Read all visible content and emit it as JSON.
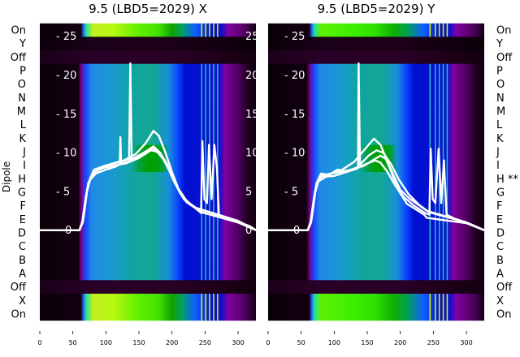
{
  "chart_data": [
    {
      "type": "heatmap",
      "title": "9.5 (LBD5=2029) X",
      "ylabel": "Dipole",
      "row_labels": [
        "On",
        "Y",
        "Off",
        "P",
        "O",
        "N",
        "M",
        "L",
        "K",
        "J",
        "I",
        "H",
        "G",
        "F",
        "E",
        "D",
        "C",
        "B",
        "A",
        "Off",
        "X",
        "On"
      ],
      "row_profiles": [
        "bright",
        "dark",
        "off",
        "mid",
        "mid",
        "mid",
        "mid",
        "mid",
        "mid",
        "midgreen",
        "midgreen",
        "mid",
        "mid",
        "mid",
        "mid",
        "mid",
        "mid",
        "mid",
        "mid",
        "off",
        "bright",
        "bright"
      ],
      "xticks": [
        0,
        50,
        100,
        150,
        200,
        250,
        300
      ],
      "xlim": [
        0,
        327
      ],
      "overlay_yticks": [
        0,
        5,
        10,
        15,
        20,
        25
      ],
      "overlay_ylim": [
        -11.67,
        26.67
      ],
      "stripes_x": [
        244,
        250,
        256,
        262,
        268
      ],
      "lines": [
        [
          [
            0,
            0
          ],
          [
            60,
            0
          ],
          [
            64,
            1
          ],
          [
            70,
            4.5
          ],
          [
            76,
            6.5
          ],
          [
            85,
            7.3
          ],
          [
            100,
            7.8
          ],
          [
            115,
            8.2
          ],
          [
            121,
            8.5
          ],
          [
            122,
            12
          ],
          [
            123,
            8.6
          ],
          [
            135,
            8.8
          ],
          [
            137,
            21.5
          ],
          [
            139,
            9
          ],
          [
            150,
            9.6
          ],
          [
            165,
            10.4
          ],
          [
            172,
            10.8
          ],
          [
            182,
            10
          ],
          [
            192,
            8.6
          ],
          [
            202,
            6.6
          ],
          [
            212,
            4.8
          ],
          [
            222,
            3.6
          ],
          [
            238,
            2.7
          ],
          [
            244,
            2.2
          ],
          [
            246,
            11.5
          ],
          [
            249,
            4
          ],
          [
            253,
            3.5
          ],
          [
            256,
            11
          ],
          [
            260,
            4
          ],
          [
            264,
            11
          ],
          [
            268,
            8
          ],
          [
            271,
            2
          ],
          [
            282,
            1.6
          ],
          [
            300,
            1.1
          ],
          [
            318,
            0.5
          ],
          [
            327,
            0
          ]
        ],
        [
          [
            0,
            0
          ],
          [
            60,
            0
          ],
          [
            65,
            1.2
          ],
          [
            71,
            5
          ],
          [
            78,
            7
          ],
          [
            88,
            7.8
          ],
          [
            105,
            8.4
          ],
          [
            125,
            8.9
          ],
          [
            145,
            9.8
          ],
          [
            160,
            11.2
          ],
          [
            172,
            12.8
          ],
          [
            180,
            12.2
          ],
          [
            190,
            10
          ],
          [
            200,
            7.5
          ],
          [
            210,
            5.3
          ],
          [
            222,
            3.8
          ],
          [
            240,
            2.5
          ],
          [
            300,
            1
          ],
          [
            327,
            0
          ]
        ],
        [
          [
            0,
            0
          ],
          [
            60,
            0
          ],
          [
            65,
            1
          ],
          [
            72,
            5.5
          ],
          [
            80,
            7.4
          ],
          [
            95,
            8
          ],
          [
            110,
            8.3
          ],
          [
            130,
            8.6
          ],
          [
            150,
            9.3
          ],
          [
            168,
            10.3
          ],
          [
            178,
            10.1
          ],
          [
            190,
            8.8
          ],
          [
            203,
            6.3
          ],
          [
            215,
            4.4
          ],
          [
            230,
            3.2
          ],
          [
            245,
            2.3
          ],
          [
            300,
            1
          ],
          [
            327,
            0
          ]
        ],
        [
          [
            0,
            0
          ],
          [
            60,
            0
          ],
          [
            66,
            1.5
          ],
          [
            73,
            6
          ],
          [
            82,
            7.8
          ],
          [
            98,
            8.3
          ],
          [
            118,
            8.8
          ],
          [
            140,
            9.2
          ],
          [
            158,
            10
          ],
          [
            170,
            10.6
          ],
          [
            184,
            9.6
          ],
          [
            196,
            7.7
          ],
          [
            206,
            5.8
          ],
          [
            218,
            4
          ],
          [
            236,
            2.9
          ],
          [
            300,
            1.2
          ],
          [
            327,
            0
          ]
        ]
      ]
    },
    {
      "type": "heatmap",
      "title": "9.5 (LBD5=2029) Y",
      "row_labels": [
        "On",
        "Y",
        "Off",
        "P",
        "O",
        "N",
        "M",
        "L",
        "K",
        "J",
        "I",
        "H **",
        "G",
        "F",
        "E",
        "D",
        "C",
        "B",
        "A",
        "Off",
        "X",
        "On"
      ],
      "row_profiles": [
        "bright2",
        "dark",
        "off",
        "mid",
        "mid",
        "mid",
        "mid",
        "mid",
        "mid",
        "midgreen",
        "midgreen",
        "mid",
        "mid",
        "mid",
        "mid",
        "mid",
        "mid",
        "mid",
        "mid",
        "off",
        "bright2",
        "bright2"
      ],
      "xticks": [
        0,
        50,
        100,
        150,
        200,
        250,
        300
      ],
      "xlim": [
        0,
        327
      ],
      "overlay_yticks": [
        0,
        5,
        10,
        15,
        20,
        25
      ],
      "overlay_ylim": [
        -11.67,
        26.67
      ],
      "stripes_x": [
        244,
        252,
        258,
        264,
        270
      ],
      "lines": [
        [
          [
            0,
            0
          ],
          [
            60,
            0
          ],
          [
            64,
            1
          ],
          [
            70,
            4.5
          ],
          [
            76,
            6.3
          ],
          [
            88,
            6.9
          ],
          [
            100,
            7
          ],
          [
            115,
            7.4
          ],
          [
            130,
            7.8
          ],
          [
            136,
            8
          ],
          [
            137,
            21.5
          ],
          [
            139,
            8.2
          ],
          [
            150,
            8.6
          ],
          [
            162,
            9
          ],
          [
            170,
            8.7
          ],
          [
            180,
            7.6
          ],
          [
            192,
            5.8
          ],
          [
            205,
            4.3
          ],
          [
            220,
            3.2
          ],
          [
            238,
            2.2
          ],
          [
            244,
            2
          ],
          [
            246,
            10.5
          ],
          [
            249,
            4
          ],
          [
            253,
            3.5
          ],
          [
            258,
            10.5
          ],
          [
            262,
            3.5
          ],
          [
            266,
            9
          ],
          [
            270,
            2
          ],
          [
            282,
            1.5
          ],
          [
            300,
            1
          ],
          [
            327,
            0
          ]
        ],
        [
          [
            0,
            0
          ],
          [
            60,
            0
          ],
          [
            65,
            1.2
          ],
          [
            71,
            5
          ],
          [
            78,
            6.8
          ],
          [
            90,
            7.2
          ],
          [
            110,
            7.7
          ],
          [
            130,
            8.8
          ],
          [
            148,
            10.6
          ],
          [
            160,
            11.8
          ],
          [
            170,
            11
          ],
          [
            180,
            9
          ],
          [
            190,
            7
          ],
          [
            200,
            5.2
          ],
          [
            215,
            4
          ],
          [
            240,
            2.5
          ],
          [
            300,
            1
          ],
          [
            327,
            0
          ]
        ],
        [
          [
            0,
            0
          ],
          [
            60,
            0
          ],
          [
            65,
            1
          ],
          [
            72,
            5.5
          ],
          [
            80,
            7
          ],
          [
            95,
            7.3
          ],
          [
            110,
            7.5
          ],
          [
            125,
            7.8
          ],
          [
            145,
            8.3
          ],
          [
            160,
            9.1
          ],
          [
            170,
            9.6
          ],
          [
            178,
            9.2
          ],
          [
            186,
            7.6
          ],
          [
            196,
            5.3
          ],
          [
            210,
            3.4
          ],
          [
            225,
            2.6
          ],
          [
            236,
            2
          ],
          [
            240,
            1.6
          ],
          [
            300,
            0.9
          ],
          [
            327,
            0
          ]
        ],
        [
          [
            0,
            0
          ],
          [
            60,
            0
          ],
          [
            66,
            1.5
          ],
          [
            73,
            6
          ],
          [
            80,
            7.3
          ],
          [
            92,
            7.1
          ],
          [
            105,
            7.8
          ],
          [
            120,
            7.6
          ],
          [
            135,
            8.1
          ],
          [
            152,
            9.6
          ],
          [
            164,
            10.3
          ],
          [
            174,
            10
          ],
          [
            186,
            8.5
          ],
          [
            198,
            6.5
          ],
          [
            212,
            4.7
          ],
          [
            228,
            3.3
          ],
          [
            244,
            2.3
          ],
          [
            300,
            1
          ],
          [
            327,
            0
          ]
        ]
      ]
    }
  ],
  "profiles": {
    "mid": [
      [
        0,
        "#0a0008"
      ],
      [
        58,
        "#120010"
      ],
      [
        64,
        "#7a0a9a"
      ],
      [
        68,
        "#1a3cff"
      ],
      [
        78,
        "#1e88e8"
      ],
      [
        110,
        "#1a9ad0"
      ],
      [
        140,
        "#10a4a0"
      ],
      [
        170,
        "#12a890"
      ],
      [
        195,
        "#1890d8"
      ],
      [
        210,
        "#0a40ff"
      ],
      [
        220,
        "#0010d0"
      ],
      [
        272,
        "#1010d0"
      ],
      [
        280,
        "#8000a0"
      ],
      [
        300,
        "#500060"
      ],
      [
        315,
        "#200020"
      ],
      [
        327,
        "#100010"
      ]
    ],
    "midgreen": [
      [
        0,
        "#0a0008"
      ],
      [
        58,
        "#120010"
      ],
      [
        64,
        "#7a0a9a"
      ],
      [
        68,
        "#1a3cff"
      ],
      [
        78,
        "#1e88e8"
      ],
      [
        110,
        "#1a9ad0"
      ],
      [
        140,
        "#10a4a0"
      ],
      [
        150,
        "#00a040"
      ],
      [
        165,
        "#00a000"
      ],
      [
        185,
        "#00a020"
      ],
      [
        195,
        "#1890d8"
      ],
      [
        210,
        "#0a40ff"
      ],
      [
        220,
        "#0010d0"
      ],
      [
        272,
        "#1010d0"
      ],
      [
        280,
        "#8000a0"
      ],
      [
        300,
        "#500060"
      ],
      [
        315,
        "#200020"
      ],
      [
        327,
        "#100010"
      ]
    ],
    "bright": [
      [
        0,
        "#0a0008"
      ],
      [
        62,
        "#120010"
      ],
      [
        66,
        "#2060ff"
      ],
      [
        70,
        "#20e0a0"
      ],
      [
        80,
        "#c0f020"
      ],
      [
        110,
        "#b8f810"
      ],
      [
        150,
        "#60f000"
      ],
      [
        180,
        "#40e000"
      ],
      [
        200,
        "#10a000"
      ],
      [
        215,
        "#00a060"
      ],
      [
        235,
        "#1060ff"
      ],
      [
        260,
        "#0010d0"
      ],
      [
        275,
        "#1010d0"
      ],
      [
        285,
        "#8000a0"
      ],
      [
        310,
        "#500060"
      ],
      [
        327,
        "#100010"
      ]
    ],
    "bright2": [
      [
        0,
        "#0a0008"
      ],
      [
        62,
        "#120010"
      ],
      [
        66,
        "#2060ff"
      ],
      [
        70,
        "#20e0a0"
      ],
      [
        80,
        "#60f000"
      ],
      [
        120,
        "#40f000"
      ],
      [
        160,
        "#30e000"
      ],
      [
        190,
        "#10b000"
      ],
      [
        210,
        "#00a050"
      ],
      [
        235,
        "#1060ff"
      ],
      [
        260,
        "#0010d0"
      ],
      [
        275,
        "#1010d0"
      ],
      [
        285,
        "#8000a0"
      ],
      [
        310,
        "#500060"
      ],
      [
        327,
        "#100010"
      ]
    ],
    "dark": [
      [
        0,
        "#0a0008"
      ],
      [
        80,
        "#1a0018"
      ],
      [
        200,
        "#1c0018"
      ],
      [
        327,
        "#0a0008"
      ]
    ],
    "off": [
      [
        0,
        "#1a0018"
      ],
      [
        80,
        "#2a0028"
      ],
      [
        200,
        "#2a0026"
      ],
      [
        327,
        "#12000f"
      ]
    ]
  },
  "colors": {
    "line": "#ffffff",
    "stripe": "#20c0c0",
    "text": "#000000"
  }
}
